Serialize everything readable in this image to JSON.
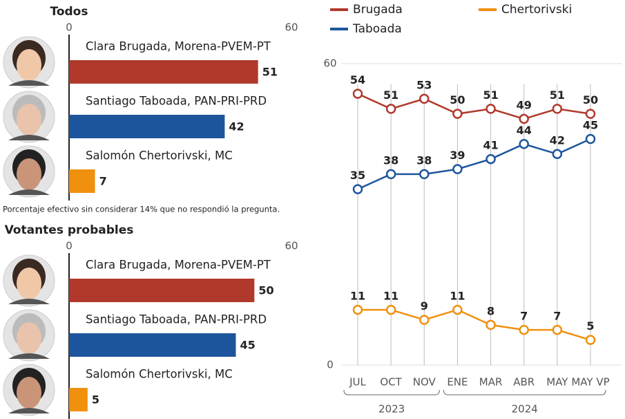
{
  "chart_data": [
    {
      "type": "hbar",
      "title": "Todos",
      "categories": [
        "Clara Brugada, Morena-PVEM-PT",
        "Santiago Taboada, PAN-PRI-PRD",
        "Salomón Chertorivski, MC"
      ],
      "values": [
        51,
        42,
        7
      ],
      "colors": [
        "#b0392c",
        "#1d559c",
        "#f0900f"
      ],
      "xlim": [
        0,
        60
      ],
      "xticks": [
        0,
        60
      ],
      "note": "Porcentaje efectivo sin considerar 14% que no respondió la pregunta."
    },
    {
      "type": "hbar",
      "title": "Votantes probables",
      "categories": [
        "Clara Brugada, Morena-PVEM-PT",
        "Santiago Taboada, PAN-PRI-PRD",
        "Salomón Chertorivski, MC"
      ],
      "values": [
        50,
        45,
        5
      ],
      "colors": [
        "#b0392c",
        "#1d559c",
        "#f0900f"
      ],
      "xlim": [
        0,
        60
      ],
      "xticks": [
        0,
        60
      ]
    },
    {
      "type": "line",
      "categories": [
        "JUL",
        "OCT",
        "NOV",
        "ENE",
        "MAR",
        "ABR",
        "MAY",
        "MAY VP"
      ],
      "category_groups": [
        {
          "label": "2023",
          "start": 0,
          "end": 2
        },
        {
          "label": "2024",
          "start": 3,
          "end": 7
        }
      ],
      "ylim": [
        0,
        60
      ],
      "yticks": [
        0,
        60
      ],
      "series": [
        {
          "name": "Brugada",
          "color": "#b0392c",
          "values": [
            54,
            51,
            53,
            50,
            51,
            49,
            51,
            50
          ]
        },
        {
          "name": "Chertorivski",
          "color": "#f0900f",
          "values": [
            11,
            11,
            9,
            11,
            8,
            7,
            7,
            5
          ]
        },
        {
          "name": "Taboada",
          "color": "#1d559c",
          "values": [
            35,
            38,
            38,
            39,
            41,
            44,
            42,
            45
          ]
        }
      ]
    }
  ]
}
